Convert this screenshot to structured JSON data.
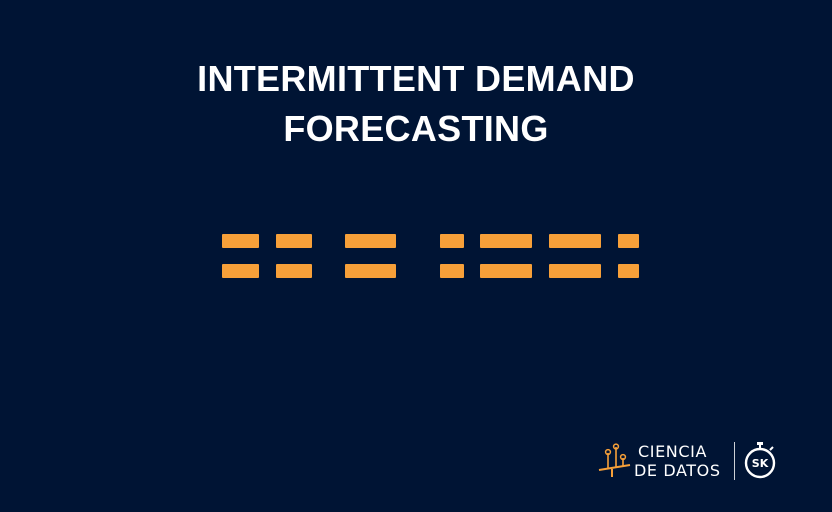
{
  "title": {
    "line1": "INTERMITTENT DEMAND",
    "line2": "FORECASTING"
  },
  "colors": {
    "background": "#001434",
    "accent": "#f7a039",
    "text": "#ffffff"
  },
  "footer": {
    "brand_line1": "CIENCIA",
    "brand_line2": "DE DATOS",
    "brand_icon": "seesaw-data-icon",
    "logo_icon": "sk-stopwatch-logo",
    "logo_text": "SK"
  }
}
